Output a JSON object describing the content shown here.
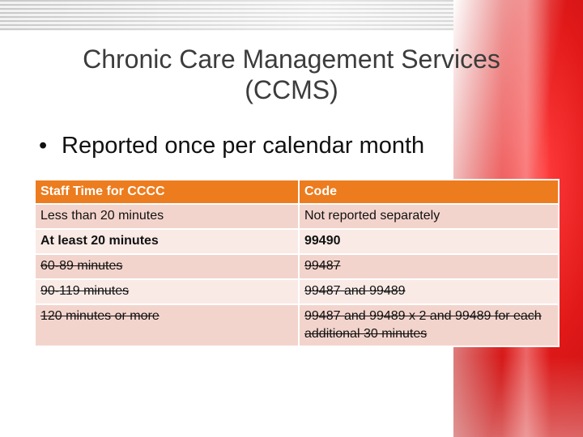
{
  "slide": {
    "title_line1": "Chronic Care Management Services",
    "title_line2": "(CCMS)",
    "bullet": "Reported once per calendar month"
  },
  "table": {
    "headers": [
      "Staff Time for CCCC",
      "Code"
    ],
    "rows": [
      {
        "time": "Less than 20 minutes",
        "code": "Not reported separately",
        "bold": false,
        "strike": false
      },
      {
        "time": "At least 20 minutes",
        "code": "99490",
        "bold": true,
        "strike": false
      },
      {
        "time": "60-89 minutes",
        "code": "99487",
        "bold": false,
        "strike": true
      },
      {
        "time": "90-119 minutes",
        "code": "99487 and 99489",
        "bold": false,
        "strike": true
      },
      {
        "time": "120 minutes or more",
        "code": "99487 and 99489 x 2 and 99489 for each additional 30 minutes",
        "bold": false,
        "strike": true
      }
    ]
  },
  "colors": {
    "header_fill": "#ec7c1e",
    "row_fill": "#f3d4cc",
    "row_fill_alt": "#f9eae6",
    "accent_red": "#e01818"
  }
}
